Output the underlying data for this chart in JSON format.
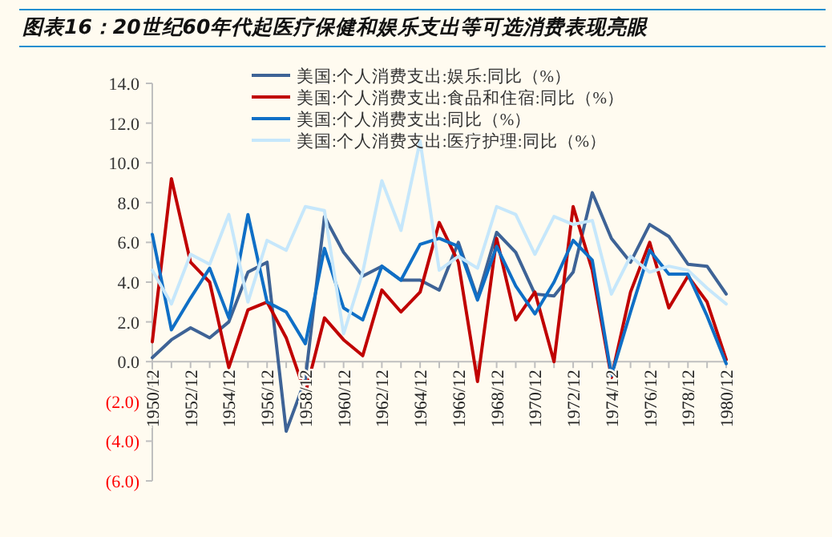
{
  "chart_data": {
    "type": "line",
    "title": "图表16：20世纪60年代起医疗保健和娱乐支出等可选消费表现亮眼",
    "categories": [
      "1950/12",
      null,
      "1952/12",
      null,
      "1954/12",
      null,
      "1956/12",
      null,
      "1958/12",
      null,
      "1960/12",
      null,
      "1962/12",
      null,
      "1964/12",
      null,
      "1966/12",
      null,
      "1968/12",
      null,
      "1970/12",
      null,
      "1972/12",
      null,
      "1974/12",
      null,
      "1976/12",
      null,
      "1978/12",
      null,
      "1980/12"
    ],
    "series": [
      {
        "name": "美国:个人消费支出:娱乐:同比（%）",
        "color": "#3e6396",
        "values": [
          0.2,
          1.1,
          1.7,
          1.2,
          2.0,
          4.5,
          5.0,
          -3.5,
          -0.9,
          7.3,
          5.5,
          4.3,
          4.8,
          4.1,
          4.1,
          3.6,
          6.0,
          3.2,
          6.5,
          5.5,
          3.4,
          3.3,
          4.5,
          8.5,
          6.2,
          5.0,
          6.9,
          6.3,
          4.9,
          4.8,
          3.4
        ]
      },
      {
        "name": "美国:个人消费支出:食品和住宿:同比（%）",
        "color": "#c00000",
        "values": [
          1.0,
          9.2,
          5.0,
          4.0,
          -0.3,
          2.6,
          3.0,
          1.2,
          -1.6,
          2.2,
          1.1,
          0.3,
          3.6,
          2.5,
          3.5,
          7.0,
          5.0,
          -1.0,
          6.2,
          2.1,
          3.5,
          0.0,
          7.8,
          4.6,
          -0.8,
          3.5,
          6.0,
          2.7,
          4.3,
          3.0,
          0.1
        ]
      },
      {
        "name": "美国:个人消费支出:同比（%）",
        "color": "#0f6fc6",
        "values": [
          6.4,
          1.6,
          3.2,
          4.7,
          2.2,
          7.4,
          3.0,
          2.5,
          0.9,
          5.7,
          2.7,
          2.1,
          4.8,
          4.1,
          5.9,
          6.2,
          5.8,
          3.1,
          5.8,
          3.8,
          2.4,
          4.0,
          6.1,
          5.1,
          -0.7,
          2.5,
          5.6,
          4.4,
          4.4,
          2.3,
          -0.1
        ]
      },
      {
        "name": "美国:个人消费支出:医疗护理:同比（%）",
        "color": "#c6e7fb",
        "values": [
          4.6,
          2.9,
          5.4,
          4.9,
          7.4,
          3.0,
          6.1,
          5.6,
          7.8,
          7.6,
          1.4,
          4.5,
          9.1,
          6.6,
          11.1,
          4.6,
          5.3,
          4.7,
          7.8,
          7.4,
          5.4,
          7.3,
          6.9,
          7.1,
          3.4,
          5.3,
          4.5,
          4.8,
          4.6,
          3.7,
          2.9
        ]
      }
    ],
    "ylim": [
      -6,
      14
    ],
    "yticks": [
      {
        "value": -6,
        "label": "(6.0)"
      },
      {
        "value": -4,
        "label": "(4.0)"
      },
      {
        "value": -2,
        "label": "(2.0)"
      },
      {
        "value": 0,
        "label": "0.0"
      },
      {
        "value": 2,
        "label": "2.0"
      },
      {
        "value": 4,
        "label": "4.0"
      },
      {
        "value": 6,
        "label": "6.0"
      },
      {
        "value": 8,
        "label": "8.0"
      },
      {
        "value": 10,
        "label": "10.0"
      },
      {
        "value": 12,
        "label": "12.0"
      },
      {
        "value": 14,
        "label": "14.0"
      }
    ],
    "legend": "top",
    "grid": false,
    "marker": "none",
    "line_style": "solid"
  }
}
